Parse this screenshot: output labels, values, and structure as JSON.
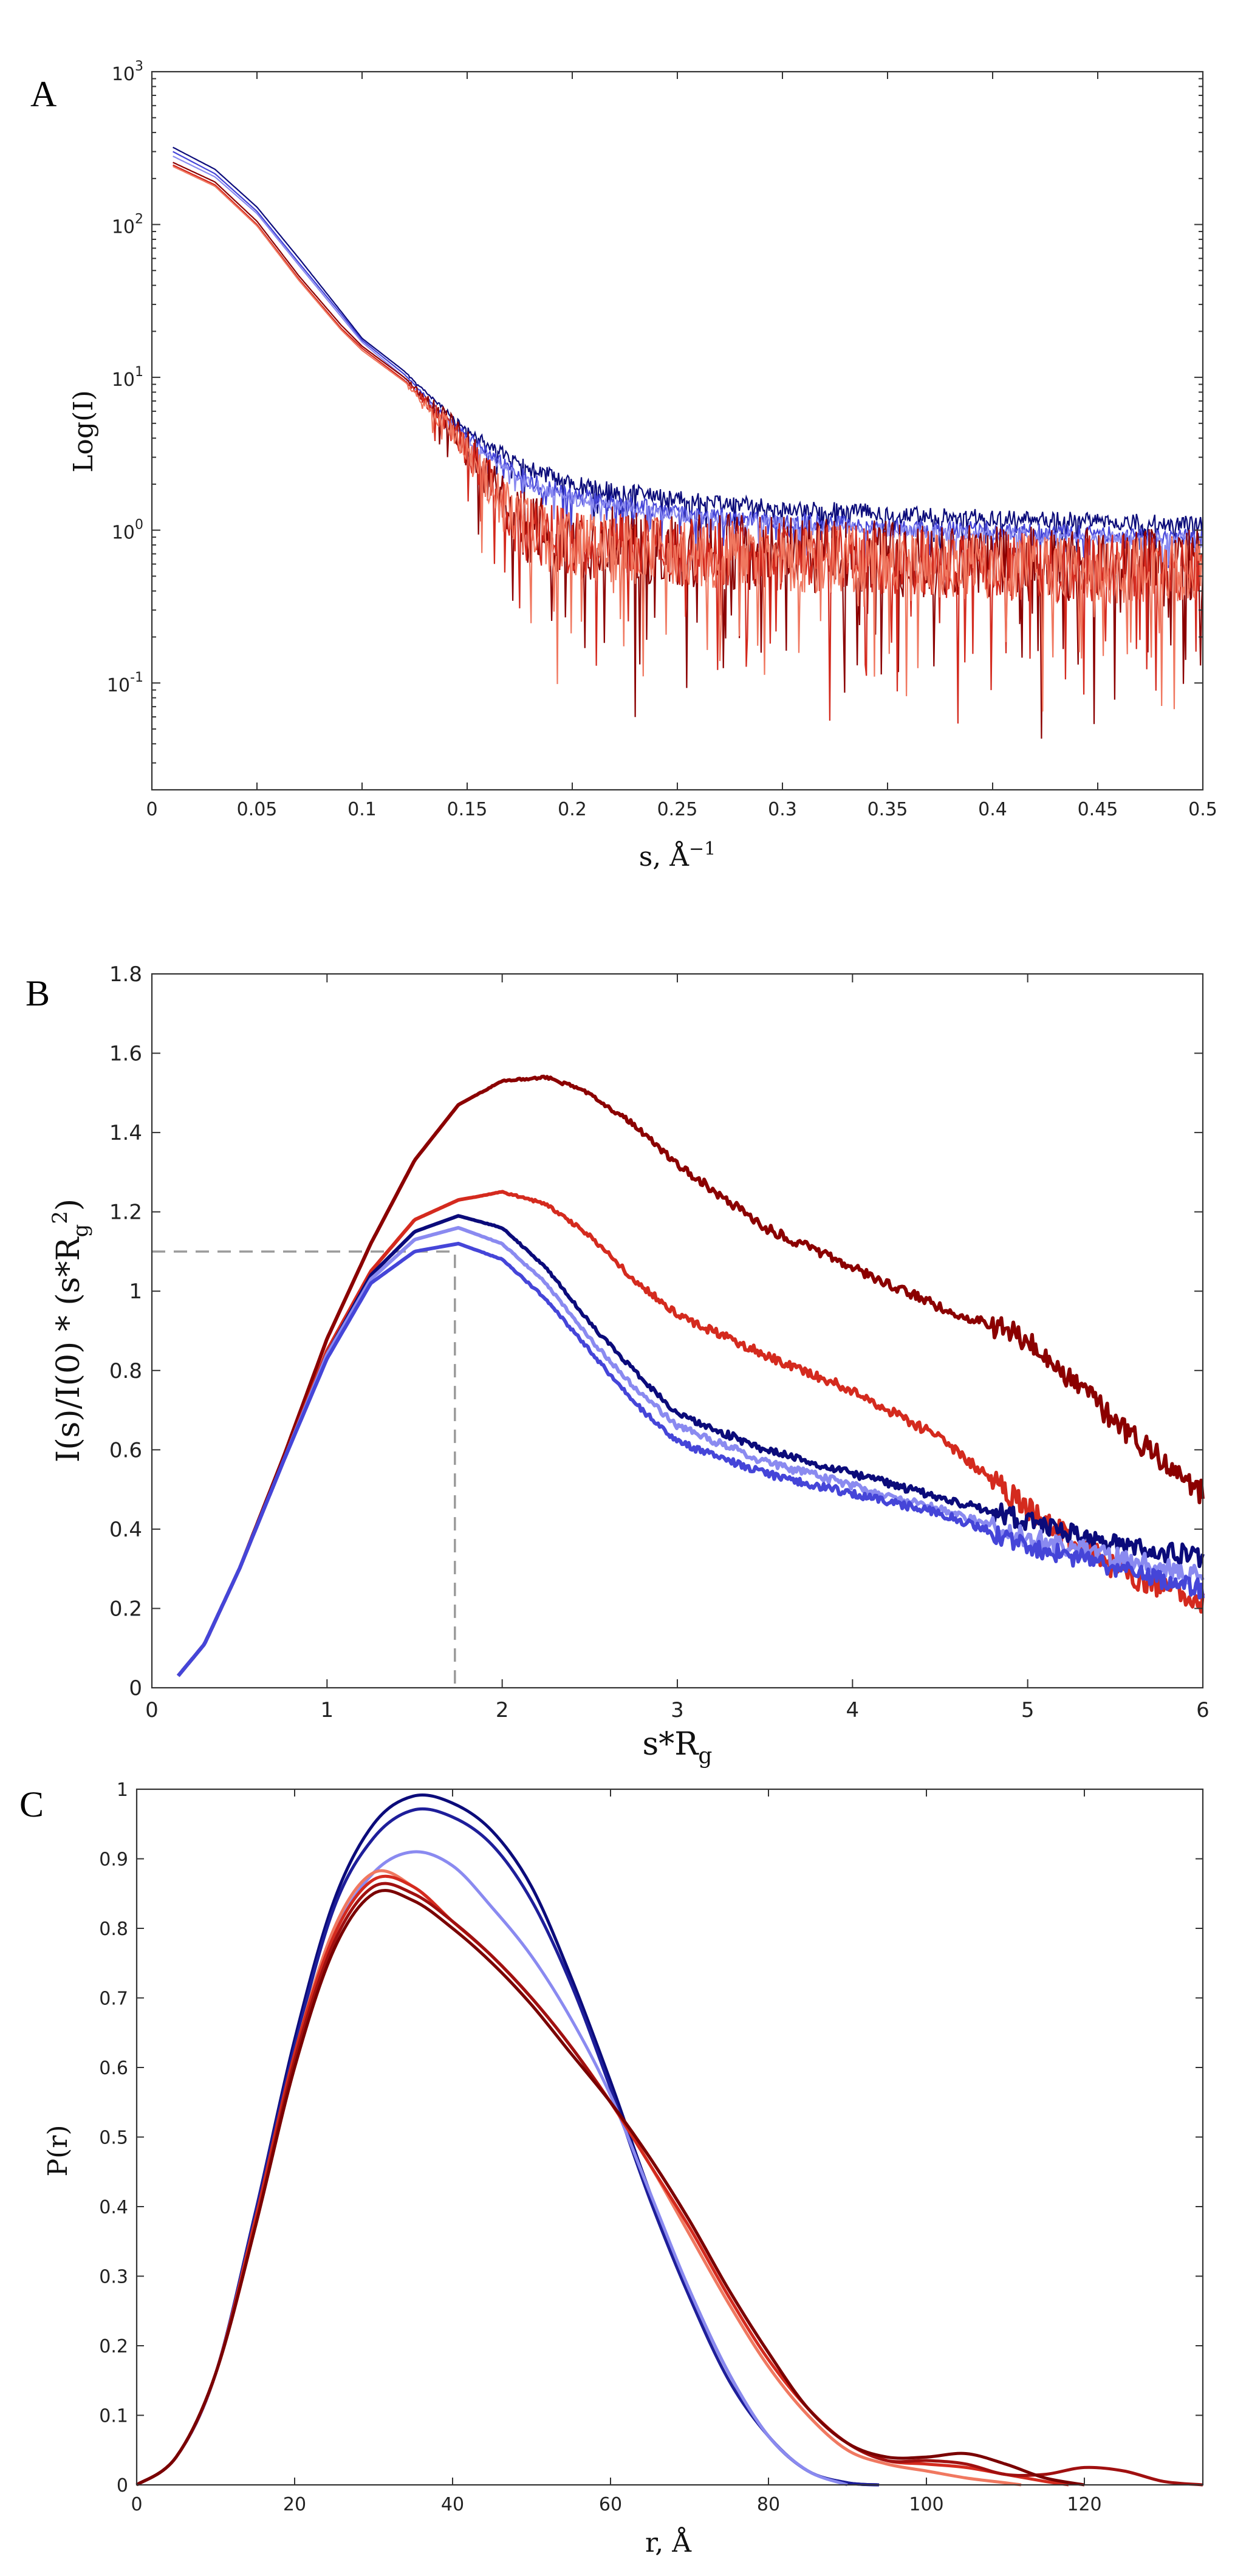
{
  "chart_data": [
    {
      "panel": "A",
      "type": "line",
      "title": "",
      "xlabel": "s, Å",
      "xlabel_sup": "−1",
      "ylabel": "Log(I)",
      "xlim": [
        0,
        0.5
      ],
      "ylim": [
        0.02,
        1000
      ],
      "yscale": "log",
      "xticks": [
        0,
        0.05,
        0.1,
        0.15,
        0.2,
        0.25,
        0.3,
        0.35,
        0.4,
        0.45,
        0.5
      ],
      "xtick_labels": [
        "0",
        "0.05",
        "0.1",
        "0.15",
        "0.2",
        "0.25",
        "0.3",
        "0.35",
        "0.4",
        "0.45",
        "0.5"
      ],
      "ytick_labels": [
        {
          "base": "10",
          "exp": "-1",
          "value": 0.1
        },
        {
          "base": "10",
          "exp": "0",
          "value": 1
        },
        {
          "base": "10",
          "exp": "1",
          "value": 10
        },
        {
          "base": "10",
          "exp": "2",
          "value": 100
        },
        {
          "base": "10",
          "exp": "3",
          "value": 1000
        }
      ],
      "series": [
        {
          "name": "navy",
          "color": "#0b0b7a",
          "noise": 0.12,
          "x": [
            0.01,
            0.03,
            0.05,
            0.07,
            0.09,
            0.1,
            0.12,
            0.14,
            0.16,
            0.18,
            0.2,
            0.25,
            0.3,
            0.35,
            0.4,
            0.45,
            0.5
          ],
          "values": [
            320,
            230,
            130,
            60,
            27,
            18,
            11,
            6,
            3.6,
            2.5,
            2.0,
            1.6,
            1.4,
            1.3,
            1.2,
            1.15,
            1.1
          ]
        },
        {
          "name": "blue",
          "color": "#4545d8",
          "noise": 0.12,
          "x": [
            0.01,
            0.03,
            0.05,
            0.07,
            0.09,
            0.1,
            0.12,
            0.14,
            0.16,
            0.18,
            0.2,
            0.25,
            0.3,
            0.35,
            0.4,
            0.45,
            0.5
          ],
          "values": [
            300,
            215,
            122,
            56,
            26,
            17.5,
            10.5,
            5.5,
            3.2,
            2.1,
            1.7,
            1.3,
            1.15,
            1.05,
            1.0,
            0.95,
            0.9
          ]
        },
        {
          "name": "light-blue",
          "color": "#8a8af0",
          "noise": 0.1,
          "x": [
            0.01,
            0.03,
            0.05,
            0.07,
            0.09,
            0.1,
            0.12,
            0.14,
            0.16,
            0.18,
            0.2,
            0.25,
            0.3,
            0.35,
            0.4,
            0.45,
            0.5
          ],
          "values": [
            280,
            205,
            118,
            54,
            25,
            17,
            10,
            5.2,
            3.0,
            2.0,
            1.6,
            1.25,
            1.1,
            1.0,
            0.95,
            0.9,
            0.85
          ]
        },
        {
          "name": "dark-red",
          "color": "#8b0000",
          "noise": 0.55,
          "x": [
            0.01,
            0.03,
            0.05,
            0.07,
            0.09,
            0.1,
            0.12,
            0.14,
            0.16,
            0.17,
            0.18,
            0.2,
            0.25,
            0.3,
            0.35,
            0.4,
            0.45,
            0.5
          ],
          "values": [
            255,
            190,
            105,
            46,
            22,
            16,
            10,
            5.2,
            2.2,
            1.4,
            1.0,
            0.85,
            0.75,
            0.7,
            0.65,
            0.6,
            0.6,
            0.6
          ]
        },
        {
          "name": "red",
          "color": "#d42a1e",
          "noise": 0.5,
          "x": [
            0.01,
            0.03,
            0.05,
            0.07,
            0.09,
            0.1,
            0.12,
            0.14,
            0.16,
            0.17,
            0.18,
            0.2,
            0.25,
            0.3,
            0.35,
            0.4,
            0.45,
            0.5
          ],
          "values": [
            245,
            182,
            100,
            44,
            21,
            15.5,
            9.6,
            5.0,
            2.1,
            1.35,
            0.98,
            0.82,
            0.72,
            0.68,
            0.63,
            0.58,
            0.56,
            0.56
          ]
        },
        {
          "name": "salmon",
          "color": "#f07860",
          "noise": 0.5,
          "x": [
            0.01,
            0.03,
            0.05,
            0.07,
            0.09,
            0.1,
            0.12,
            0.14,
            0.16,
            0.17,
            0.18,
            0.2,
            0.25,
            0.3,
            0.35,
            0.4,
            0.45,
            0.5
          ],
          "values": [
            240,
            178,
            98,
            43,
            20.5,
            15,
            9.4,
            4.9,
            2.05,
            1.3,
            0.95,
            0.8,
            0.7,
            0.66,
            0.62,
            0.57,
            0.55,
            0.55
          ]
        }
      ]
    },
    {
      "panel": "B",
      "type": "line",
      "title": "",
      "xlabel": "s*R",
      "xlabel_sub": "g",
      "ylabel": "I(s)/I(0) * (s*R",
      "ylabel_sub": "g",
      "ylabel_sup": "2",
      "ylabel_close": ")",
      "xlim": [
        0,
        6
      ],
      "ylim": [
        0,
        1.8
      ],
      "xticks": [
        0,
        1,
        2,
        3,
        4,
        5,
        6
      ],
      "xtick_labels": [
        "0",
        "1",
        "2",
        "3",
        "4",
        "5",
        "6"
      ],
      "yticks": [
        0,
        0.2,
        0.4,
        0.6,
        0.8,
        1,
        1.2,
        1.4,
        1.6,
        1.8
      ],
      "ytick_labels": [
        "0",
        "0.2",
        "0.4",
        "0.6",
        "0.8",
        "1",
        "1.2",
        "1.4",
        "1.6",
        "1.8"
      ],
      "guide": {
        "x": 1.73,
        "y": 1.1
      },
      "series": [
        {
          "name": "dark-red",
          "color": "#8b0000",
          "noise": 0.012,
          "x": [
            0.15,
            0.3,
            0.5,
            0.75,
            1.0,
            1.25,
            1.5,
            1.75,
            2.0,
            2.25,
            2.5,
            2.75,
            3.0,
            3.5,
            4.0,
            4.5,
            5.0,
            5.5,
            6.0
          ],
          "values": [
            0.03,
            0.11,
            0.3,
            0.58,
            0.88,
            1.12,
            1.33,
            1.47,
            1.53,
            1.54,
            1.5,
            1.42,
            1.32,
            1.16,
            1.06,
            0.96,
            0.88,
            0.67,
            0.49
          ]
        },
        {
          "name": "red",
          "color": "#d42a1e",
          "noise": 0.012,
          "x": [
            0.15,
            0.3,
            0.5,
            0.75,
            1.0,
            1.25,
            1.5,
            1.75,
            2.0,
            2.25,
            2.5,
            2.75,
            3.0,
            3.5,
            4.0,
            4.5,
            5.0,
            5.5,
            6.0
          ],
          "values": [
            0.03,
            0.11,
            0.3,
            0.57,
            0.85,
            1.05,
            1.18,
            1.23,
            1.25,
            1.22,
            1.14,
            1.03,
            0.94,
            0.84,
            0.75,
            0.63,
            0.45,
            0.3,
            0.21
          ]
        },
        {
          "name": "navy",
          "color": "#0b0b7a",
          "noise": 0.01,
          "x": [
            0.15,
            0.3,
            0.5,
            0.75,
            1.0,
            1.25,
            1.5,
            1.75,
            2.0,
            2.25,
            2.5,
            2.75,
            3.0,
            3.5,
            4.0,
            4.5,
            5.0,
            5.5,
            6.0
          ],
          "values": [
            0.03,
            0.11,
            0.3,
            0.57,
            0.84,
            1.04,
            1.15,
            1.19,
            1.16,
            1.06,
            0.92,
            0.8,
            0.69,
            0.6,
            0.54,
            0.48,
            0.42,
            0.36,
            0.33
          ]
        },
        {
          "name": "light-blue",
          "color": "#8a8af0",
          "noise": 0.01,
          "x": [
            0.15,
            0.3,
            0.5,
            0.75,
            1.0,
            1.25,
            1.5,
            1.75,
            2.0,
            2.25,
            2.5,
            2.75,
            3.0,
            3.5,
            4.0,
            4.5,
            5.0,
            5.5,
            6.0
          ],
          "values": [
            0.03,
            0.11,
            0.3,
            0.57,
            0.84,
            1.03,
            1.13,
            1.16,
            1.12,
            1.02,
            0.88,
            0.76,
            0.66,
            0.57,
            0.51,
            0.45,
            0.38,
            0.33,
            0.28
          ]
        },
        {
          "name": "blue",
          "color": "#4545d8",
          "noise": 0.01,
          "x": [
            0.15,
            0.3,
            0.5,
            0.75,
            1.0,
            1.25,
            1.5,
            1.75,
            2.0,
            2.25,
            2.5,
            2.75,
            3.0,
            3.5,
            4.0,
            4.5,
            5.0,
            5.5,
            6.0
          ],
          "values": [
            0.03,
            0.11,
            0.3,
            0.57,
            0.83,
            1.02,
            1.1,
            1.12,
            1.08,
            0.98,
            0.85,
            0.72,
            0.62,
            0.54,
            0.49,
            0.44,
            0.36,
            0.3,
            0.25
          ]
        }
      ]
    },
    {
      "panel": "C",
      "type": "line",
      "title": "",
      "xlabel": "r, Å",
      "ylabel": "P(r)",
      "xlim": [
        0,
        135
      ],
      "ylim": [
        0,
        1
      ],
      "xticks": [
        0,
        20,
        40,
        60,
        80,
        100,
        120
      ],
      "xtick_labels": [
        "0",
        "20",
        "40",
        "60",
        "80",
        "100",
        "120"
      ],
      "yticks": [
        0,
        0.1,
        0.2,
        0.3,
        0.4,
        0.5,
        0.6,
        0.7,
        0.8,
        0.9,
        1
      ],
      "ytick_labels": [
        "0",
        "0.1",
        "0.2",
        "0.3",
        "0.4",
        "0.5",
        "0.6",
        "0.7",
        "0.8",
        "0.9",
        "1"
      ],
      "series": [
        {
          "name": "navy-1",
          "color": "#0b0b7a",
          "x": [
            0,
            5,
            10,
            15,
            20,
            25,
            30,
            35,
            40,
            45,
            50,
            55,
            60,
            65,
            70,
            75,
            80,
            85,
            90,
            94
          ],
          "values": [
            0,
            0.04,
            0.16,
            0.39,
            0.64,
            0.84,
            0.95,
            0.99,
            0.98,
            0.94,
            0.86,
            0.73,
            0.58,
            0.42,
            0.28,
            0.16,
            0.07,
            0.02,
            0.003,
            0
          ]
        },
        {
          "name": "navy-2",
          "color": "#1e1e9a",
          "x": [
            0,
            5,
            10,
            15,
            20,
            25,
            30,
            35,
            40,
            45,
            50,
            55,
            60,
            65,
            70,
            75,
            80,
            85,
            90,
            94
          ],
          "values": [
            0,
            0.04,
            0.16,
            0.39,
            0.63,
            0.83,
            0.93,
            0.97,
            0.96,
            0.92,
            0.84,
            0.72,
            0.57,
            0.41,
            0.27,
            0.15,
            0.07,
            0.02,
            0.003,
            0
          ]
        },
        {
          "name": "light-blue",
          "color": "#8a8af0",
          "x": [
            0,
            5,
            10,
            15,
            20,
            25,
            30,
            35,
            40,
            45,
            50,
            55,
            60,
            65,
            70,
            75,
            80,
            85,
            90
          ],
          "values": [
            0,
            0.04,
            0.16,
            0.38,
            0.61,
            0.79,
            0.88,
            0.91,
            0.89,
            0.83,
            0.76,
            0.67,
            0.56,
            0.42,
            0.28,
            0.16,
            0.07,
            0.02,
            0
          ]
        },
        {
          "name": "salmon",
          "color": "#f07860",
          "x": [
            0,
            5,
            10,
            15,
            20,
            25,
            30,
            35,
            40,
            45,
            50,
            55,
            60,
            65,
            70,
            75,
            80,
            85,
            90,
            95,
            100,
            105,
            110,
            112
          ],
          "values": [
            0,
            0.04,
            0.16,
            0.38,
            0.62,
            0.8,
            0.88,
            0.86,
            0.81,
            0.76,
            0.7,
            0.63,
            0.55,
            0.46,
            0.36,
            0.26,
            0.17,
            0.1,
            0.05,
            0.03,
            0.02,
            0.01,
            0.003,
            0
          ]
        },
        {
          "name": "red",
          "color": "#d42a1e",
          "x": [
            0,
            5,
            10,
            15,
            20,
            25,
            30,
            35,
            40,
            45,
            50,
            55,
            60,
            65,
            70,
            75,
            80,
            85,
            90,
            95,
            100,
            105,
            110,
            115,
            118
          ],
          "values": [
            0,
            0.04,
            0.16,
            0.38,
            0.62,
            0.79,
            0.87,
            0.86,
            0.81,
            0.76,
            0.7,
            0.63,
            0.55,
            0.46,
            0.37,
            0.27,
            0.18,
            0.11,
            0.06,
            0.035,
            0.03,
            0.025,
            0.015,
            0.005,
            0
          ]
        },
        {
          "name": "dark-red-1",
          "color": "#a01010",
          "x": [
            0,
            5,
            10,
            15,
            20,
            25,
            30,
            35,
            40,
            45,
            50,
            55,
            60,
            65,
            70,
            75,
            80,
            85,
            90,
            95,
            100,
            105,
            110,
            115,
            120,
            125,
            130,
            135
          ],
          "values": [
            0,
            0.04,
            0.16,
            0.37,
            0.61,
            0.78,
            0.86,
            0.85,
            0.81,
            0.76,
            0.7,
            0.63,
            0.55,
            0.47,
            0.38,
            0.28,
            0.19,
            0.11,
            0.06,
            0.035,
            0.035,
            0.03,
            0.015,
            0.015,
            0.025,
            0.02,
            0.005,
            0
          ]
        },
        {
          "name": "dark-red-2",
          "color": "#7a0000",
          "x": [
            0,
            5,
            10,
            15,
            20,
            25,
            30,
            35,
            40,
            45,
            50,
            55,
            60,
            65,
            70,
            75,
            80,
            85,
            90,
            95,
            100,
            105,
            110,
            115,
            120
          ],
          "values": [
            0,
            0.04,
            0.16,
            0.37,
            0.6,
            0.77,
            0.85,
            0.84,
            0.8,
            0.75,
            0.69,
            0.62,
            0.55,
            0.47,
            0.38,
            0.28,
            0.19,
            0.11,
            0.06,
            0.04,
            0.04,
            0.045,
            0.03,
            0.01,
            0
          ]
        }
      ]
    }
  ]
}
